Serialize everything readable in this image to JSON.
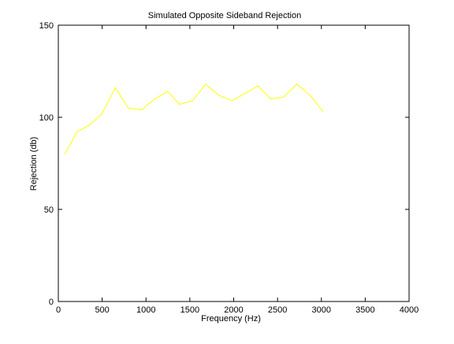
{
  "chart_data": {
    "type": "line",
    "title": "Simulated Opposite Sideband Rejection",
    "xlabel": "Frequency (Hz)",
    "ylabel": "Rejection (db)",
    "xlim": [
      0,
      4000
    ],
    "ylim": [
      0,
      150
    ],
    "xticks": [
      0,
      500,
      1000,
      1500,
      2000,
      2500,
      3000,
      3500,
      4000
    ],
    "yticks": [
      0,
      50,
      100,
      150
    ],
    "grid": false,
    "series": [
      {
        "color": "#ffff00",
        "x": [
          75,
          210,
          360,
          500,
          650,
          800,
          950,
          1100,
          1250,
          1380,
          1530,
          1680,
          1830,
          1980,
          2130,
          2280,
          2420,
          2570,
          2720,
          2870,
          3020
        ],
        "y": [
          80,
          92,
          96,
          102,
          116,
          105,
          104,
          110,
          114,
          107,
          109,
          118,
          112,
          109,
          113,
          117,
          110,
          111,
          118,
          112,
          103
        ]
      }
    ]
  }
}
